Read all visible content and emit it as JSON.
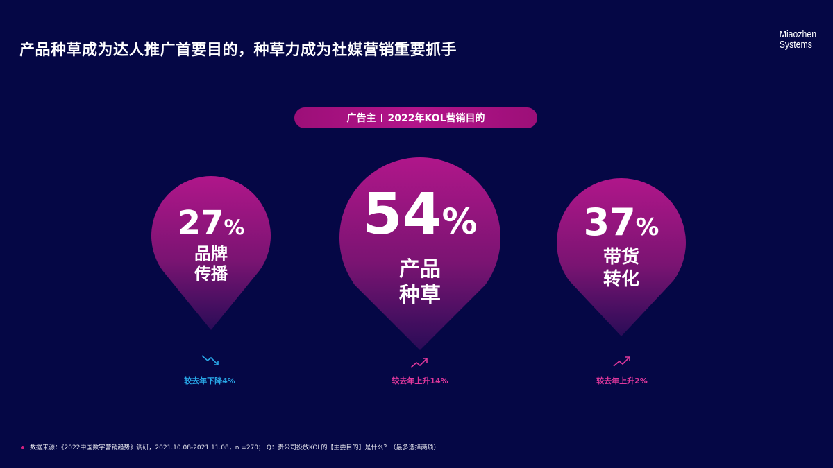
{
  "header": {
    "title": "产品种草成为达人推广首要目的，种草力成为社媒营销重要抓手",
    "logo_line1": "Miaozhen",
    "logo_line2": "Systems"
  },
  "pill": {
    "left": "广告主",
    "right": "2022年KOL营销目的"
  },
  "stats": [
    {
      "value": "27",
      "unit": "%",
      "label_line1": "品牌",
      "label_line2": "传播",
      "trend": "较去年下降4%",
      "direction": "down",
      "trend_color": "#29a8e8"
    },
    {
      "value": "54",
      "unit": "%",
      "label_line1": "产品",
      "label_line2": "种草",
      "trend": "较去年上升14%",
      "direction": "up",
      "trend_color": "#e0389c"
    },
    {
      "value": "37",
      "unit": "%",
      "label_line1": "带货",
      "label_line2": "转化",
      "trend": "较去年上升2%",
      "direction": "up",
      "trend_color": "#e0389c"
    }
  ],
  "footnote": "数据来源：《2022中国数字营销趋势》调研，2021.10.08-2021.11.08，n =270；  Q：贵公司投放KOL的【主要目的】是什么？（最多选择两项）",
  "colors": {
    "background": "#050745",
    "accent_magenta": "#a8177f",
    "pin_top": "#b0168a",
    "pin_bottom": "#2a0c57"
  }
}
